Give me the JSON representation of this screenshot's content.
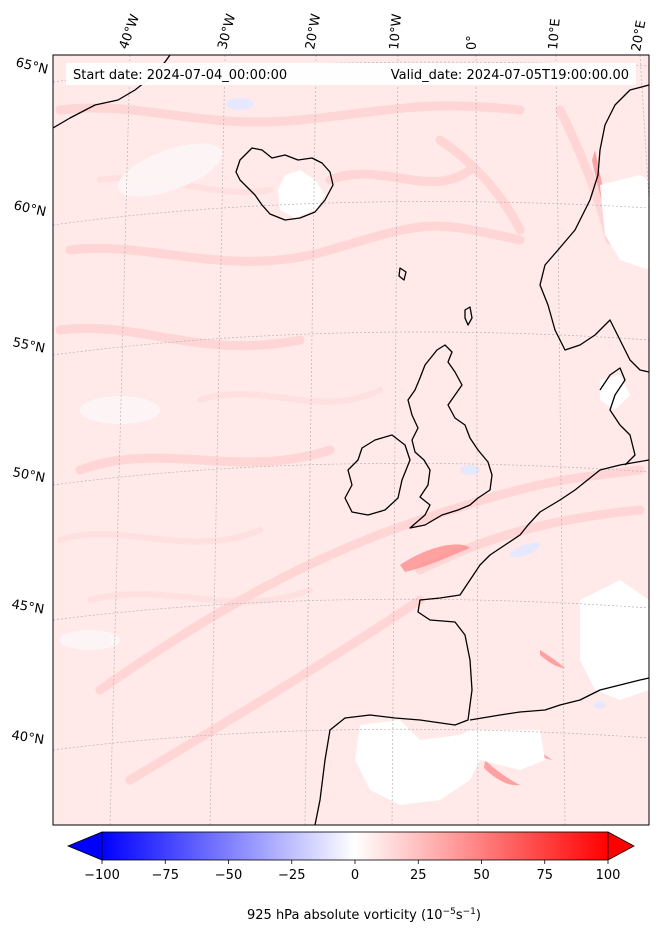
{
  "header": {
    "start_date": "Start date: 2024-07-04_00:00:00",
    "valid_date": "Valid_date: 2024-07-05T19:00:00.00"
  },
  "longitude_labels": [
    "40°W",
    "30°W",
    "20°W",
    "10°W",
    "0°",
    "10°E",
    "20°E"
  ],
  "latitude_labels": [
    "65°N",
    "60°N",
    "55°N",
    "50°N",
    "45°N",
    "40°N"
  ],
  "colorbar": {
    "ticks": [
      "−100",
      "−75",
      "−50",
      "−25",
      "0",
      "25",
      "50",
      "75",
      "100"
    ],
    "tick_values": [
      -100,
      -75,
      -50,
      -25,
      0,
      25,
      50,
      75,
      100
    ],
    "range": [
      -100,
      100
    ],
    "levels": 40,
    "colormap": "bwr",
    "extend": "both",
    "label_main": "925 hPa absolute vorticity (10",
    "label_exp1": "−5",
    "label_mid": "s",
    "label_exp2": "−1",
    "label_end": ")"
  },
  "colors": {
    "background_field": "#ffe6e6",
    "coastline": "#000000",
    "gridline": "#b0b0b0",
    "min": "#0000ff",
    "mid": "#ffffff",
    "max": "#ff0000"
  }
}
